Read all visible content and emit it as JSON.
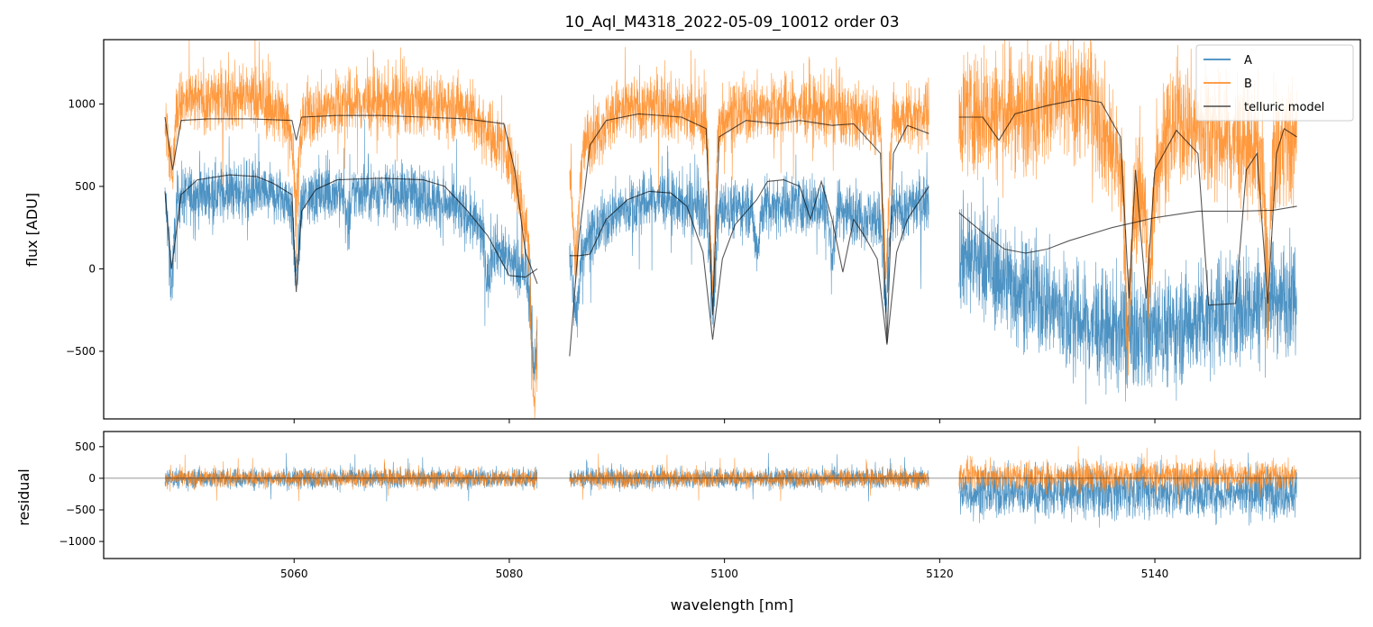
{
  "chart_data": {
    "type": "line",
    "title": "10_Aql_M4318_2022-05-09_10012  order 03",
    "xlabel": "wavelength [nm]",
    "x_ticks": [
      5060,
      5080,
      5100,
      5120,
      5140
    ],
    "x_tick_labels": [
      "5060",
      "5080",
      "5100",
      "5120",
      "5140"
    ],
    "xlim": [
      5042.3,
      5159.1
    ],
    "segments": [
      [
        5048.0,
        5082.6
      ],
      [
        5085.6,
        5119.0
      ],
      [
        5121.8,
        5153.2
      ]
    ],
    "colors": {
      "A": "#1f77b4",
      "B": "#ff7f0e",
      "telluric": "#000000"
    },
    "legend": [
      "A",
      "B",
      "telluric model"
    ],
    "legend_position": "top-right",
    "main_panel": {
      "ylabel": "flux [ADU]",
      "ylim": [
        -910,
        1390
      ],
      "y_ticks": [
        -500,
        0,
        500,
        1000
      ],
      "y_tick_labels": [
        "−500",
        "0",
        "500",
        "1000"
      ],
      "series": [
        {
          "name": "A",
          "continuum_points": [
            [
              5048,
              430
            ],
            [
              5052,
              460
            ],
            [
              5056,
              470
            ],
            [
              5060,
              420
            ],
            [
              5064,
              470
            ],
            [
              5068,
              470
            ],
            [
              5072,
              450
            ],
            [
              5076,
              330
            ],
            [
              5080,
              50
            ],
            [
              5082.6,
              -100
            ],
            [
              5086,
              100
            ],
            [
              5090,
              350
            ],
            [
              5094,
              430
            ],
            [
              5098,
              350
            ],
            [
              5102,
              380
            ],
            [
              5106,
              400
            ],
            [
              5110,
              380
            ],
            [
              5114,
              300
            ],
            [
              5119,
              420
            ],
            [
              5122,
              100
            ],
            [
              5126,
              -50
            ],
            [
              5130,
              -200
            ],
            [
              5134,
              -350
            ],
            [
              5138,
              -400
            ],
            [
              5142,
              -350
            ],
            [
              5146,
              -250
            ],
            [
              5150,
              -200
            ],
            [
              5153,
              -150
            ]
          ],
          "dips": [
            [
              5048.6,
              500
            ],
            [
              5060.2,
              450
            ],
            [
              5065,
              200
            ],
            [
              5078,
              250
            ],
            [
              5082.3,
              500
            ],
            [
              5086.2,
              400
            ],
            [
              5098.9,
              600
            ],
            [
              5115,
              550
            ],
            [
              5110,
              300
            ],
            [
              5103,
              250
            ]
          ]
        },
        {
          "name": "B",
          "continuum_points": [
            [
              5048,
              980
            ],
            [
              5052,
              1030
            ],
            [
              5056,
              1050
            ],
            [
              5060,
              900
            ],
            [
              5064,
              1000
            ],
            [
              5068,
              1010
            ],
            [
              5072,
              1000
            ],
            [
              5076,
              980
            ],
            [
              5080,
              700
            ],
            [
              5082.6,
              0
            ],
            [
              5086,
              700
            ],
            [
              5090,
              950
            ],
            [
              5094,
              1000
            ],
            [
              5098,
              900
            ],
            [
              5102,
              960
            ],
            [
              5106,
              980
            ],
            [
              5110,
              950
            ],
            [
              5114,
              900
            ],
            [
              5119,
              950
            ],
            [
              5122,
              950
            ],
            [
              5126,
              950
            ],
            [
              5130,
              1000
            ],
            [
              5134,
              1050
            ],
            [
              5138,
              400
            ],
            [
              5142,
              900
            ],
            [
              5146,
              800
            ],
            [
              5150,
              700
            ],
            [
              5153,
              750
            ]
          ],
          "dips": [
            [
              5048.6,
              400
            ],
            [
              5060.2,
              500
            ],
            [
              5082.3,
              900
            ],
            [
              5086.2,
              700
            ],
            [
              5098.9,
              1000
            ],
            [
              5115,
              900
            ],
            [
              5137.5,
              900
            ],
            [
              5139.5,
              700
            ],
            [
              5150.5,
              800
            ]
          ]
        },
        {
          "name": "telluric model (upper)",
          "points": [
            [
              5048,
              920
            ],
            [
              5048.7,
              600
            ],
            [
              5049.5,
              900
            ],
            [
              5052,
              910
            ],
            [
              5056,
              910
            ],
            [
              5059.8,
              900
            ],
            [
              5060.2,
              780
            ],
            [
              5060.7,
              920
            ],
            [
              5064,
              930
            ],
            [
              5068,
              930
            ],
            [
              5072,
              920
            ],
            [
              5076,
              910
            ],
            [
              5079.5,
              880
            ],
            [
              5080.5,
              600
            ],
            [
              5081.5,
              100
            ],
            [
              5082.6,
              -90
            ],
            [
              5085.6,
              -530
            ],
            [
              5086.5,
              200
            ],
            [
              5087.5,
              750
            ],
            [
              5089,
              900
            ],
            [
              5092,
              940
            ],
            [
              5096,
              920
            ],
            [
              5098.3,
              850
            ],
            [
              5098.9,
              -280
            ],
            [
              5099.5,
              800
            ],
            [
              5102,
              900
            ],
            [
              5105,
              880
            ],
            [
              5107,
              900
            ],
            [
              5110,
              870
            ],
            [
              5112,
              880
            ],
            [
              5114.5,
              700
            ],
            [
              5115.1,
              -450
            ],
            [
              5115.7,
              700
            ],
            [
              5117,
              870
            ],
            [
              5119,
              820
            ],
            [
              5121.8,
              920
            ],
            [
              5124,
              920
            ],
            [
              5125.5,
              780
            ],
            [
              5127,
              940
            ],
            [
              5130,
              990
            ],
            [
              5133,
              1030
            ],
            [
              5135,
              1010
            ],
            [
              5136.8,
              800
            ],
            [
              5137.6,
              -180
            ],
            [
              5138.2,
              600
            ],
            [
              5139.2,
              -180
            ],
            [
              5140,
              600
            ],
            [
              5142,
              840
            ],
            [
              5144,
              700
            ],
            [
              5145,
              -220
            ],
            [
              5147.5,
              -210
            ],
            [
              5148.5,
              600
            ],
            [
              5149.5,
              700
            ],
            [
              5150.5,
              -210
            ],
            [
              5151.3,
              700
            ],
            [
              5152,
              850
            ],
            [
              5153.2,
              800
            ]
          ]
        },
        {
          "name": "telluric model (lower)",
          "points": [
            [
              5048,
              470
            ],
            [
              5048.6,
              0
            ],
            [
              5049.5,
              450
            ],
            [
              5051,
              540
            ],
            [
              5054,
              570
            ],
            [
              5056.5,
              560
            ],
            [
              5058,
              520
            ],
            [
              5059.8,
              450
            ],
            [
              5060.2,
              -140
            ],
            [
              5060.7,
              350
            ],
            [
              5062,
              480
            ],
            [
              5064,
              540
            ],
            [
              5068,
              550
            ],
            [
              5072,
              540
            ],
            [
              5074,
              500
            ],
            [
              5076,
              360
            ],
            [
              5078,
              200
            ],
            [
              5080,
              -40
            ],
            [
              5081.5,
              -50
            ],
            [
              5082.6,
              0
            ],
            [
              5085.6,
              80
            ],
            [
              5086.5,
              80
            ],
            [
              5087.5,
              90
            ],
            [
              5089,
              300
            ],
            [
              5091,
              420
            ],
            [
              5093,
              470
            ],
            [
              5095,
              460
            ],
            [
              5096.5,
              380
            ],
            [
              5098,
              100
            ],
            [
              5098.9,
              -430
            ],
            [
              5099.8,
              60
            ],
            [
              5101,
              270
            ],
            [
              5103,
              420
            ],
            [
              5104,
              530
            ],
            [
              5105.5,
              540
            ],
            [
              5107,
              500
            ],
            [
              5108,
              300
            ],
            [
              5109,
              530
            ],
            [
              5110,
              300
            ],
            [
              5111,
              -20
            ],
            [
              5112,
              300
            ],
            [
              5113,
              200
            ],
            [
              5114.2,
              60
            ],
            [
              5115.1,
              -460
            ],
            [
              5116,
              100
            ],
            [
              5117,
              300
            ],
            [
              5119,
              500
            ],
            [
              5121.8,
              340
            ],
            [
              5124,
              220
            ],
            [
              5126,
              120
            ],
            [
              5128,
              95
            ],
            [
              5130,
              120
            ],
            [
              5132,
              170
            ],
            [
              5136,
              250
            ],
            [
              5140,
              310
            ],
            [
              5144,
              350
            ],
            [
              5148,
              350
            ],
            [
              5151,
              355
            ],
            [
              5153.2,
              380
            ]
          ]
        }
      ]
    },
    "residual_panel": {
      "ylabel": "residual",
      "ylim": [
        -1270,
        740
      ],
      "y_ticks": [
        -1000,
        -500,
        0,
        500
      ],
      "y_tick_labels": [
        "−1000",
        "−500",
        "0",
        "500"
      ],
      "zero_line": 0
    }
  }
}
